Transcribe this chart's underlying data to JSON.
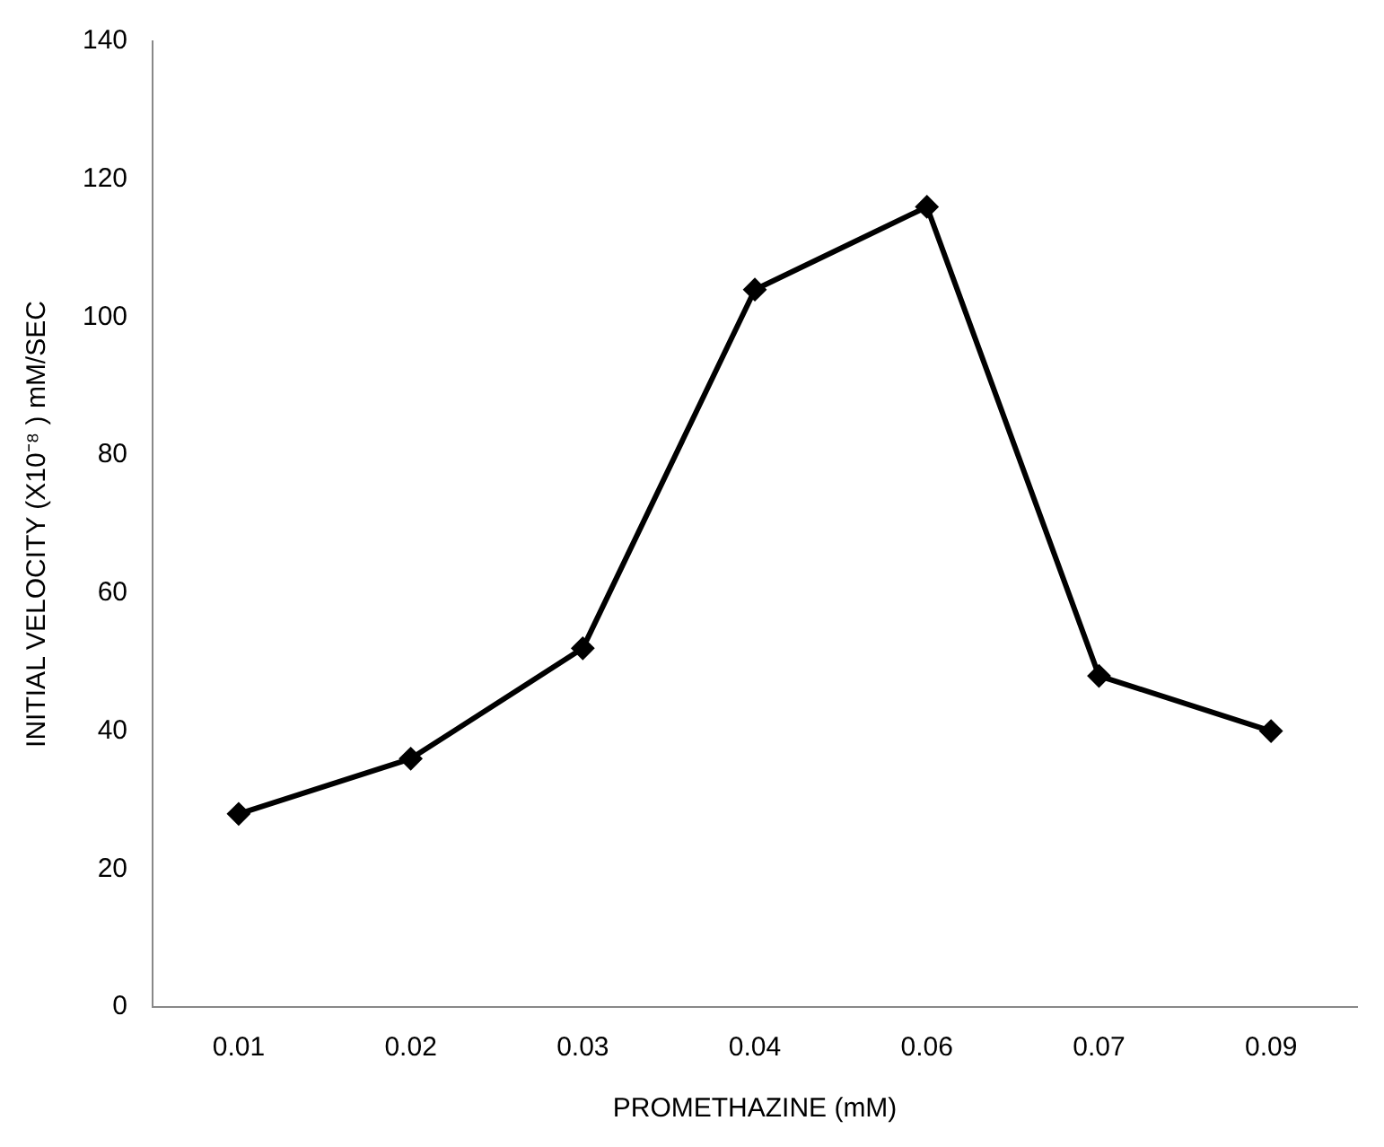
{
  "chart_data": {
    "type": "line",
    "xlabel": "PROMETHAZINE (mM)",
    "ylabel": "INITIAL VELOCITY (X10⁻⁸ ) mM/SEC",
    "categories": [
      "0.01",
      "0.02",
      "0.03",
      "0.04",
      "0.06",
      "0.07",
      "0.09"
    ],
    "series": [
      {
        "color": "#000000",
        "values": [
          28,
          36,
          52,
          104,
          116,
          48,
          40
        ]
      }
    ],
    "ylim": [
      0,
      140
    ],
    "yticks": [
      0,
      20,
      40,
      60,
      80,
      100,
      120,
      140
    ],
    "grid": false,
    "legend": false,
    "marker": "diamond",
    "line_style": "solid"
  }
}
